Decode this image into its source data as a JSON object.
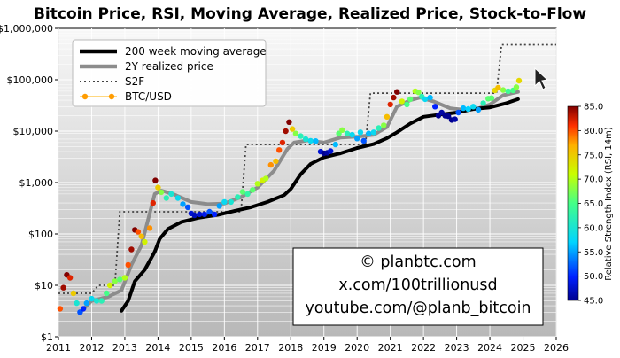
{
  "colors": {
    "wma": "#000000",
    "realized": "#8c8c8c",
    "s2f": "#444444",
    "accent": "#ff9c00"
  },
  "credits": [
    "© planbtc.com",
    "x.com/100trillionusd",
    "youtube.com/@planb_bitcoin"
  ],
  "colorbar": {
    "label": "Relative Strength Index (RSI, 14m)",
    "min": 45,
    "max": 85,
    "ticks": [
      45.0,
      50.0,
      55.0,
      60.0,
      65.0,
      70.0,
      75.0,
      80.0,
      85.0
    ]
  },
  "chart_data": {
    "type": "line",
    "title": "Bitcoin Price, RSI, Moving Average, Realized Price, Stock-to-Flow",
    "xlabel": "",
    "ylabel": "",
    "yscale": "log",
    "xlim": [
      2011,
      2026
    ],
    "ylim": [
      1,
      1000000
    ],
    "x_ticks": [
      "2011",
      "2012",
      "2013",
      "2014",
      "2015",
      "2016",
      "2017",
      "2018",
      "2019",
      "2020",
      "2021",
      "2022",
      "2023",
      "2024",
      "2025",
      "2026"
    ],
    "y_ticks": [
      "$1",
      "$10",
      "$100",
      "$1,000",
      "$10,000",
      "$100,000",
      "$1,000,000"
    ],
    "y_tick_values": [
      1,
      10,
      100,
      1000,
      10000,
      100000,
      1000000
    ],
    "legend": {
      "position": "top-left",
      "entries": [
        "200 week moving average",
        "2Y realized price",
        "S2F",
        "BTC/USD"
      ]
    },
    "series": [
      {
        "name": "200 week moving average",
        "style": "thick-line",
        "points": [
          [
            2012.9,
            3.2
          ],
          [
            2013.1,
            5
          ],
          [
            2013.3,
            12
          ],
          [
            2013.6,
            20
          ],
          [
            2013.9,
            45
          ],
          [
            2014.05,
            80
          ],
          [
            2014.3,
            125
          ],
          [
            2014.7,
            170
          ],
          [
            2015.2,
            205
          ],
          [
            2015.8,
            235
          ],
          [
            2016.3,
            280
          ],
          [
            2016.8,
            330
          ],
          [
            2017.3,
            420
          ],
          [
            2017.8,
            570
          ],
          [
            2018.0,
            750
          ],
          [
            2018.3,
            1450
          ],
          [
            2018.6,
            2300
          ],
          [
            2019.0,
            3100
          ],
          [
            2019.5,
            3700
          ],
          [
            2020.0,
            4700
          ],
          [
            2020.5,
            5600
          ],
          [
            2020.9,
            7300
          ],
          [
            2021.2,
            9500
          ],
          [
            2021.6,
            14000
          ],
          [
            2022.0,
            19000
          ],
          [
            2022.5,
            21000
          ],
          [
            2023.0,
            23000
          ],
          [
            2023.5,
            27000
          ],
          [
            2024.0,
            29000
          ],
          [
            2024.5,
            35000
          ],
          [
            2024.85,
            42000
          ]
        ]
      },
      {
        "name": "2Y realized price",
        "style": "gray-line",
        "points": [
          [
            2011.7,
            3.2
          ],
          [
            2012.0,
            5
          ],
          [
            2012.5,
            6
          ],
          [
            2012.9,
            8
          ],
          [
            2013.2,
            25
          ],
          [
            2013.5,
            60
          ],
          [
            2013.9,
            600
          ],
          [
            2014.1,
            700
          ],
          [
            2014.5,
            580
          ],
          [
            2015.0,
            420
          ],
          [
            2015.5,
            380
          ],
          [
            2016.0,
            390
          ],
          [
            2016.5,
            520
          ],
          [
            2017.0,
            800
          ],
          [
            2017.5,
            1700
          ],
          [
            2017.9,
            4500
          ],
          [
            2018.1,
            6000
          ],
          [
            2018.5,
            6600
          ],
          [
            2019.0,
            6000
          ],
          [
            2019.5,
            7500
          ],
          [
            2020.0,
            7800
          ],
          [
            2020.5,
            8500
          ],
          [
            2020.9,
            12000
          ],
          [
            2021.2,
            30000
          ],
          [
            2021.6,
            40000
          ],
          [
            2021.9,
            45000
          ],
          [
            2022.3,
            38000
          ],
          [
            2022.8,
            28000
          ],
          [
            2023.2,
            26000
          ],
          [
            2023.6,
            27000
          ],
          [
            2024.0,
            33000
          ],
          [
            2024.4,
            50000
          ],
          [
            2024.85,
            58000
          ]
        ]
      },
      {
        "name": "S2F",
        "style": "dotted-step",
        "points": [
          [
            2011.0,
            7
          ],
          [
            2012.0,
            7
          ],
          [
            2012.2,
            10
          ],
          [
            2012.7,
            10
          ],
          [
            2012.85,
            270
          ],
          [
            2016.5,
            270
          ],
          [
            2016.65,
            5500
          ],
          [
            2020.25,
            5500
          ],
          [
            2020.4,
            55000
          ],
          [
            2024.2,
            55000
          ],
          [
            2024.35,
            480000
          ],
          [
            2026.0,
            480000
          ]
        ]
      },
      {
        "name": "BTC/USD",
        "style": "rsi-dots",
        "points": [
          [
            2011.05,
            3.5,
            80
          ],
          [
            2011.15,
            9,
            84
          ],
          [
            2011.25,
            16,
            85
          ],
          [
            2011.35,
            14,
            82
          ],
          [
            2011.45,
            7,
            75
          ],
          [
            2011.55,
            4.5,
            60
          ],
          [
            2011.65,
            3,
            52
          ],
          [
            2011.75,
            3.5,
            50
          ],
          [
            2011.85,
            4.5,
            55
          ],
          [
            2012.0,
            5.5,
            58
          ],
          [
            2012.15,
            5,
            60
          ],
          [
            2012.3,
            5,
            62
          ],
          [
            2012.45,
            7,
            65
          ],
          [
            2012.55,
            10,
            72
          ],
          [
            2012.7,
            12,
            68
          ],
          [
            2012.85,
            13,
            66
          ],
          [
            2013.0,
            14,
            70
          ],
          [
            2013.1,
            25,
            80
          ],
          [
            2013.2,
            50,
            84
          ],
          [
            2013.3,
            120,
            85
          ],
          [
            2013.4,
            110,
            80
          ],
          [
            2013.5,
            90,
            76
          ],
          [
            2013.6,
            70,
            72
          ],
          [
            2013.75,
            130,
            78
          ],
          [
            2013.85,
            400,
            82
          ],
          [
            2013.92,
            1100,
            85
          ],
          [
            2014.0,
            800,
            75
          ],
          [
            2014.1,
            650,
            68
          ],
          [
            2014.25,
            500,
            62
          ],
          [
            2014.4,
            600,
            60
          ],
          [
            2014.6,
            500,
            58
          ],
          [
            2014.75,
            380,
            55
          ],
          [
            2014.9,
            330,
            52
          ],
          [
            2015.0,
            250,
            48
          ],
          [
            2015.1,
            230,
            47
          ],
          [
            2015.25,
            240,
            48
          ],
          [
            2015.4,
            240,
            49
          ],
          [
            2015.55,
            270,
            52
          ],
          [
            2015.7,
            240,
            50
          ],
          [
            2015.85,
            350,
            55
          ],
          [
            2016.0,
            420,
            58
          ],
          [
            2016.2,
            420,
            60
          ],
          [
            2016.4,
            520,
            62
          ],
          [
            2016.55,
            660,
            66
          ],
          [
            2016.7,
            600,
            63
          ],
          [
            2016.85,
            720,
            66
          ],
          [
            2017.0,
            950,
            70
          ],
          [
            2017.15,
            1100,
            72
          ],
          [
            2017.25,
            1200,
            70
          ],
          [
            2017.4,
            2200,
            78
          ],
          [
            2017.55,
            2600,
            76
          ],
          [
            2017.65,
            4300,
            80
          ],
          [
            2017.75,
            6000,
            82
          ],
          [
            2017.85,
            10000,
            84
          ],
          [
            2017.95,
            15000,
            85
          ],
          [
            2018.05,
            11000,
            75
          ],
          [
            2018.15,
            9000,
            68
          ],
          [
            2018.3,
            8000,
            62
          ],
          [
            2018.45,
            7000,
            60
          ],
          [
            2018.6,
            6500,
            58
          ],
          [
            2018.75,
            6400,
            56
          ],
          [
            2018.9,
            4000,
            48
          ],
          [
            2019.0,
            3700,
            45
          ],
          [
            2019.1,
            3800,
            46
          ],
          [
            2019.2,
            4100,
            48
          ],
          [
            2019.35,
            5500,
            56
          ],
          [
            2019.45,
            9000,
            66
          ],
          [
            2019.55,
            10500,
            68
          ],
          [
            2019.7,
            9000,
            62
          ],
          [
            2019.85,
            8500,
            58
          ],
          [
            2020.0,
            7200,
            55
          ],
          [
            2020.1,
            9500,
            58
          ],
          [
            2020.2,
            6500,
            52
          ],
          [
            2020.35,
            9000,
            56
          ],
          [
            2020.5,
            9500,
            58
          ],
          [
            2020.65,
            11500,
            62
          ],
          [
            2020.8,
            13000,
            68
          ],
          [
            2020.9,
            19000,
            76
          ],
          [
            2021.0,
            33000,
            82
          ],
          [
            2021.1,
            45000,
            84
          ],
          [
            2021.2,
            58000,
            85
          ],
          [
            2021.35,
            38000,
            72
          ],
          [
            2021.5,
            33000,
            65
          ],
          [
            2021.6,
            42000,
            66
          ],
          [
            2021.75,
            60000,
            70
          ],
          [
            2021.85,
            57000,
            68
          ],
          [
            2021.95,
            47000,
            62
          ],
          [
            2022.05,
            42000,
            58
          ],
          [
            2022.2,
            45000,
            56
          ],
          [
            2022.35,
            30000,
            50
          ],
          [
            2022.45,
            20000,
            45
          ],
          [
            2022.55,
            23000,
            46
          ],
          [
            2022.65,
            20000,
            45
          ],
          [
            2022.75,
            19500,
            45
          ],
          [
            2022.85,
            16500,
            45
          ],
          [
            2022.95,
            17000,
            46
          ],
          [
            2023.05,
            23000,
            52
          ],
          [
            2023.2,
            28000,
            56
          ],
          [
            2023.35,
            27000,
            57
          ],
          [
            2023.5,
            30000,
            58
          ],
          [
            2023.65,
            26000,
            55
          ],
          [
            2023.8,
            35000,
            62
          ],
          [
            2023.95,
            43000,
            66
          ],
          [
            2024.05,
            44000,
            66
          ],
          [
            2024.15,
            62000,
            74
          ],
          [
            2024.25,
            70000,
            76
          ],
          [
            2024.4,
            63000,
            68
          ],
          [
            2024.55,
            60000,
            64
          ],
          [
            2024.7,
            62000,
            65
          ],
          [
            2024.8,
            72000,
            68
          ],
          [
            2024.88,
            96000,
            74
          ]
        ]
      }
    ]
  }
}
